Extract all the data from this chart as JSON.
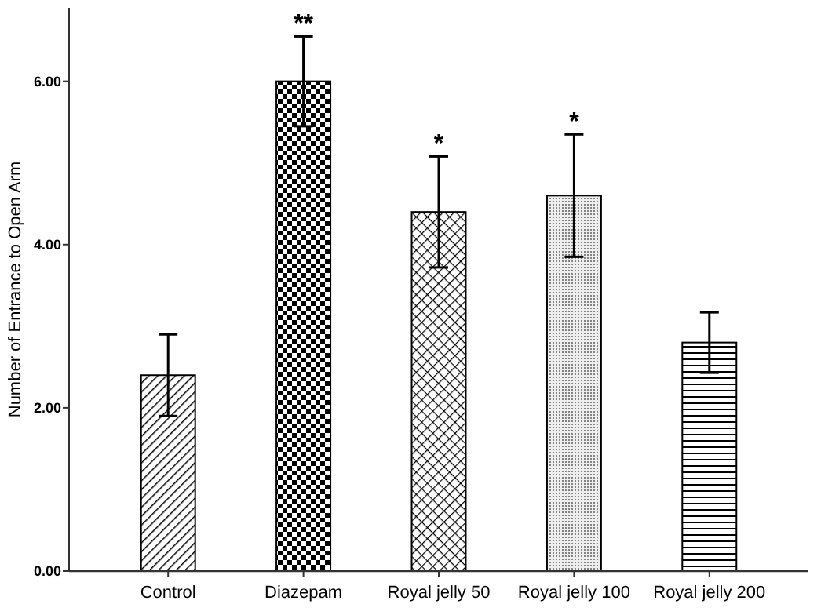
{
  "chart_data": {
    "type": "bar",
    "ylabel": "Number of Entrance to Open Arm",
    "categories": [
      "Control",
      "Diazepam",
      "Royal jelly 50",
      "Royal jelly 100",
      "Royal jelly 200"
    ],
    "values": [
      2.4,
      6.0,
      4.4,
      4.6,
      2.8
    ],
    "errors": [
      [
        1.9,
        2.9
      ],
      [
        5.45,
        6.55
      ],
      [
        3.72,
        5.08
      ],
      [
        3.85,
        5.35
      ],
      [
        2.43,
        3.17
      ]
    ],
    "color": "#000000",
    "ylim": [
      0,
      6.9
    ],
    "yticks": [
      {
        "value": 0,
        "label": "0.00"
      },
      {
        "value": 2,
        "label": "2.00"
      },
      {
        "value": 4,
        "label": "4.00"
      },
      {
        "value": 6,
        "label": "6.00"
      }
    ],
    "annotations": [
      {
        "text": "**",
        "x": "Diazepam",
        "y": 6.55
      },
      {
        "text": "*",
        "x": "Royal jelly 50",
        "y": 5.08
      },
      {
        "text": "*",
        "x": "Royal jelly 100",
        "y": 5.35
      }
    ],
    "grid": false
  }
}
